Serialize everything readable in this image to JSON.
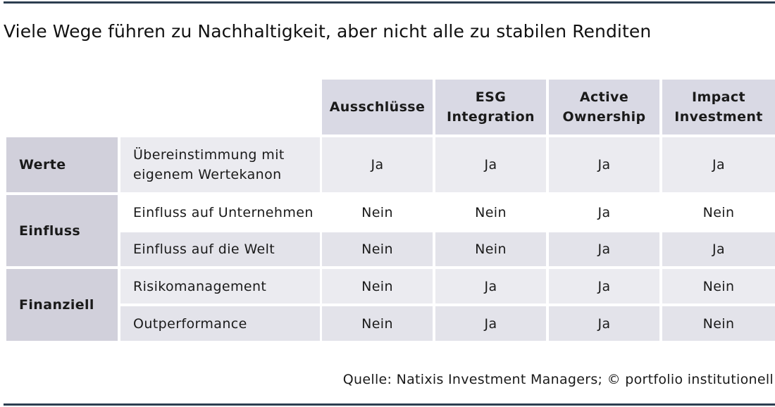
{
  "title": "Viele Wege führen zu Nachhaltigkeit, aber nicht alle zu stabilen Renditen",
  "columns": [
    "Ausschlüsse",
    "ESG\nIntegration",
    "Active\nOwnership",
    "Impact\nInvestment"
  ],
  "categories": [
    "Werte",
    "Einfluss",
    "Finanziell"
  ],
  "rows": [
    {
      "label": "Übereinstimmung mit\neigenem Wertekanon",
      "values": [
        "Ja",
        "Ja",
        "Ja",
        "Ja"
      ]
    },
    {
      "label": "Einfluss auf Unternehmen",
      "values": [
        "Nein",
        "Nein",
        "Ja",
        "Nein"
      ]
    },
    {
      "label": "Einfluss auf die Welt",
      "values": [
        "Nein",
        "Nein",
        "Ja",
        "Ja"
      ]
    },
    {
      "label": "Risikomanagement",
      "values": [
        "Nein",
        "Ja",
        "Ja",
        "Nein"
      ]
    },
    {
      "label": "Outperformance",
      "values": [
        "Nein",
        "Ja",
        "Ja",
        "Nein"
      ]
    }
  ],
  "source": "Quelle: Natixis Investment Managers; © portfolio institutionell"
}
